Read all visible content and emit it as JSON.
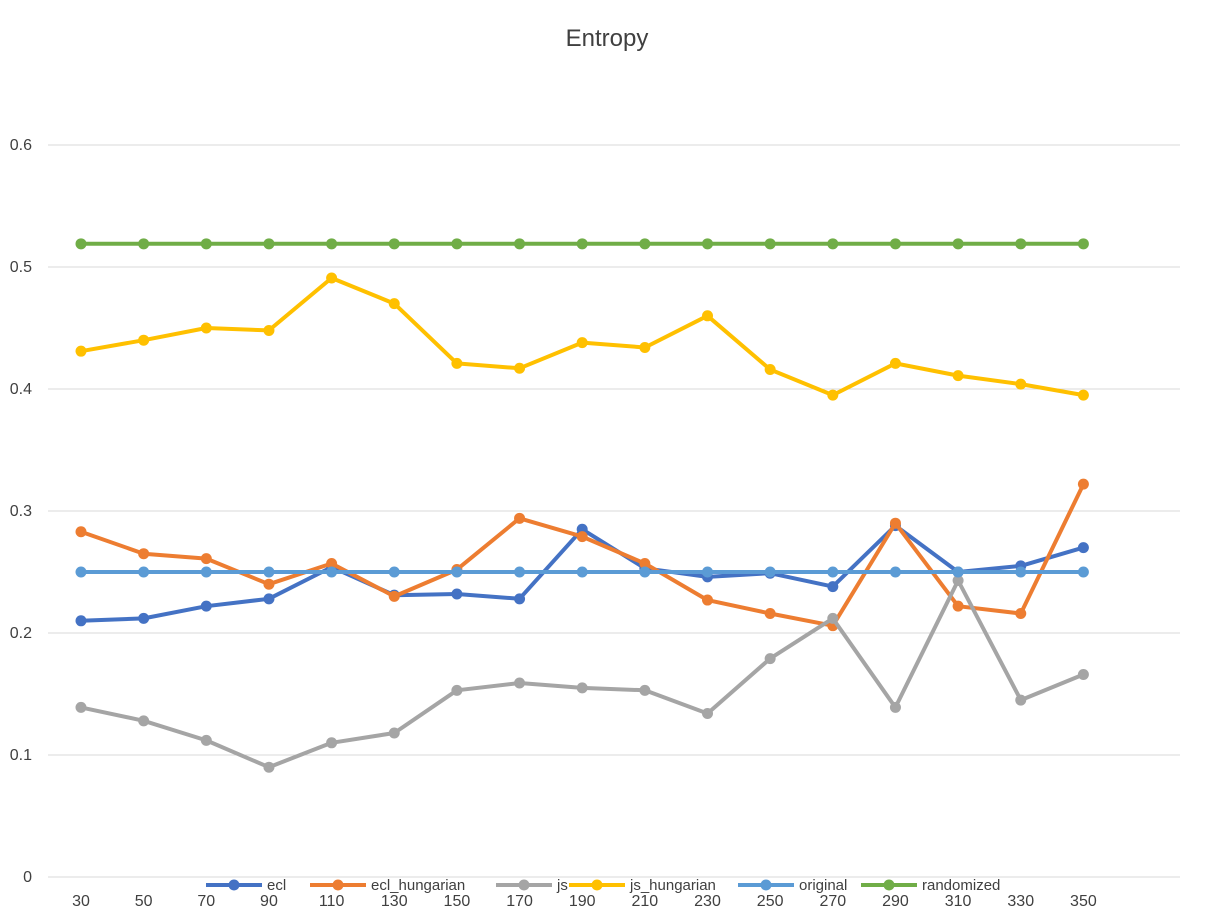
{
  "chart_data": {
    "type": "line",
    "title": "Entropy",
    "xlabel": "",
    "ylabel": "",
    "categories": [
      "30",
      "50",
      "70",
      "90",
      "110",
      "130",
      "150",
      "170",
      "190",
      "210",
      "230",
      "250",
      "270",
      "290",
      "310",
      "330",
      "350"
    ],
    "ylim": [
      0,
      0.6
    ],
    "yticks": [
      "0",
      "0.1",
      "0.2",
      "0.3",
      "0.4",
      "0.5",
      "0.6"
    ],
    "grid": true,
    "legend_position": "bottom",
    "series": [
      {
        "name": "ecl",
        "color": "#4472C4",
        "values": [
          0.21,
          0.212,
          0.222,
          0.228,
          0.254,
          0.231,
          0.232,
          0.228,
          0.285,
          0.253,
          0.246,
          0.249,
          0.238,
          0.288,
          0.25,
          0.255,
          0.27
        ]
      },
      {
        "name": "ecl_hungarian",
        "color": "#ED7D31",
        "values": [
          0.283,
          0.265,
          0.261,
          0.24,
          0.257,
          0.23,
          0.252,
          0.294,
          0.279,
          0.257,
          0.227,
          0.216,
          0.206,
          0.29,
          0.222,
          0.216,
          0.322
        ]
      },
      {
        "name": "js",
        "color": "#A5A5A5",
        "values": [
          0.139,
          0.128,
          0.112,
          0.09,
          0.11,
          0.118,
          0.153,
          0.159,
          0.155,
          0.153,
          0.134,
          0.179,
          0.212,
          0.139,
          0.243,
          0.145,
          0.166
        ]
      },
      {
        "name": "js_hungarian",
        "color": "#FFC000",
        "values": [
          0.431,
          0.44,
          0.45,
          0.448,
          0.491,
          0.47,
          0.421,
          0.417,
          0.438,
          0.434,
          0.46,
          0.416,
          0.395,
          0.421,
          0.411,
          0.404,
          0.395
        ]
      },
      {
        "name": "original",
        "color": "#5B9BD5",
        "values": [
          0.25,
          0.25,
          0.25,
          0.25,
          0.25,
          0.25,
          0.25,
          0.25,
          0.25,
          0.25,
          0.25,
          0.25,
          0.25,
          0.25,
          0.25,
          0.25,
          0.25
        ]
      },
      {
        "name": "randomized",
        "color": "#70AD47",
        "values": [
          0.519,
          0.519,
          0.519,
          0.519,
          0.519,
          0.519,
          0.519,
          0.519,
          0.519,
          0.519,
          0.519,
          0.519,
          0.519,
          0.519,
          0.519,
          0.519,
          0.519
        ]
      }
    ]
  }
}
